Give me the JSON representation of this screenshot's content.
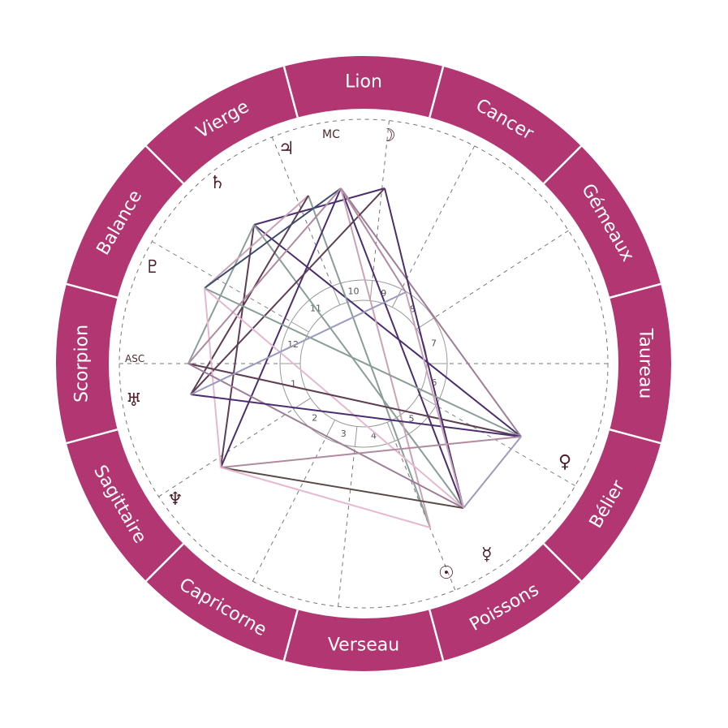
{
  "colors": {
    "ring": "#b23672",
    "ring_divider": "#ffffff",
    "sign_text": "#ffffff",
    "dashed": "#777777",
    "glyph": "#4e1f2a"
  },
  "zodiac_signs": [
    {
      "label": "Lion",
      "angle": 90
    },
    {
      "label": "Cancer",
      "angle": 60
    },
    {
      "label": "Gémeaux",
      "angle": 30
    },
    {
      "label": "Taureau",
      "angle": 0
    },
    {
      "label": "Bélier",
      "angle": -30
    },
    {
      "label": "Poissons",
      "angle": -60
    },
    {
      "label": "Verseau",
      "angle": -90
    },
    {
      "label": "Capricorne",
      "angle": -120
    },
    {
      "label": "Sagittaire",
      "angle": -150
    },
    {
      "label": "Scorpion",
      "angle": 180
    },
    {
      "label": "Balance",
      "angle": 150
    },
    {
      "label": "Vierge",
      "angle": 120
    }
  ],
  "houses": [
    "1",
    "2",
    "3",
    "4",
    "5",
    "6",
    "7",
    "8",
    "9",
    "10",
    "11",
    "12"
  ],
  "axes": {
    "asc": "ASC",
    "mc": "MC"
  },
  "planets": [
    {
      "name": "moon",
      "glyph": "☽"
    },
    {
      "name": "jupiter",
      "glyph": "♃"
    },
    {
      "name": "saturn",
      "glyph": "♄"
    },
    {
      "name": "pluto",
      "glyph": "♇"
    },
    {
      "name": "uranus",
      "glyph": "♅"
    },
    {
      "name": "neptune",
      "glyph": "♆"
    },
    {
      "name": "venus",
      "glyph": "♀"
    },
    {
      "name": "mercury",
      "glyph": "☿"
    },
    {
      "name": "sun",
      "glyph": "☉"
    }
  ],
  "aspect_colors": [
    "#4b2e6f",
    "#8a9e98",
    "#c9a3b6",
    "#5e3e52",
    "#9e7e96",
    "#e6b8d0",
    "#3d4d6a",
    "#b08aa0",
    "#9a9abe",
    "#5c4a4a"
  ]
}
